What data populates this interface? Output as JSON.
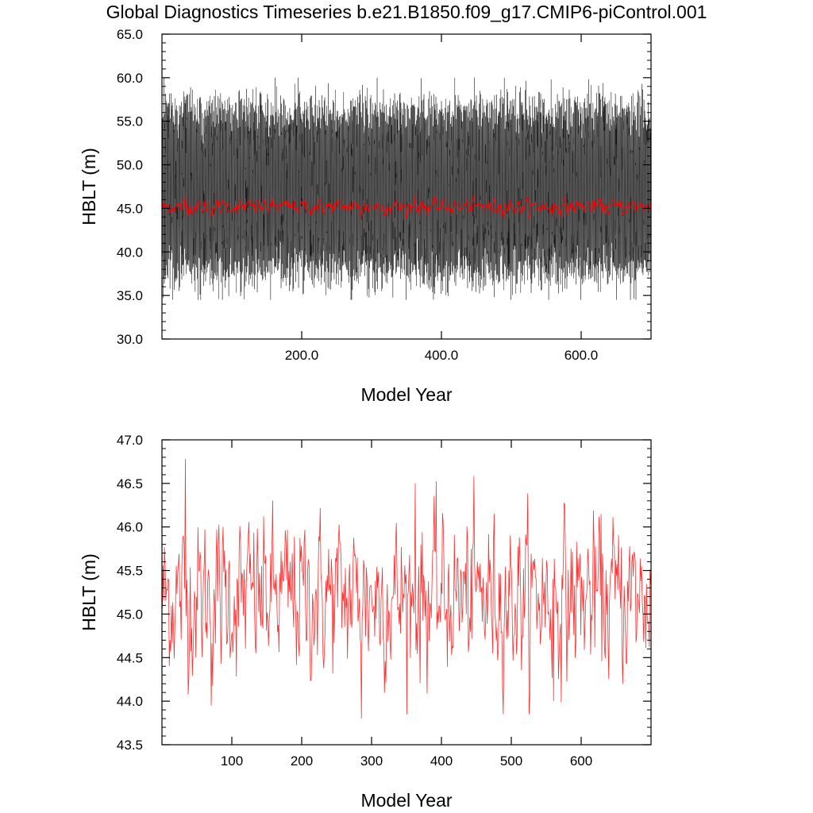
{
  "title": "Global Diagnostics Timeseries b.e21.B1850.f09_g17.CMIP6-piControl.001",
  "colors": {
    "monthly": "#000000",
    "annual": "#ff0000",
    "annual_lower": "#ff3030"
  },
  "chart_data": [
    {
      "type": "line",
      "xlabel": "Model Year",
      "ylabel": "HBLT (m)",
      "xlim": [
        0,
        700
      ],
      "ylim": [
        30.0,
        65.0
      ],
      "xticks": [
        200,
        400,
        600
      ],
      "xtick_labels": [
        "200.0",
        "400.0",
        "600.0"
      ],
      "yticks": [
        30,
        35,
        40,
        45,
        50,
        55,
        60,
        65
      ],
      "ytick_labels": [
        "30.0",
        "35.0",
        "40.0",
        "45.0",
        "50.0",
        "55.0",
        "60.0",
        "65.0"
      ],
      "series": [
        {
          "style": "monthly",
          "color": "#000000",
          "description_values": {
            "seasonal_min_range": [
              34.5,
              40.0
            ],
            "seasonal_max_range": [
              55.0,
              60.0
            ]
          }
        },
        {
          "style": "annual",
          "color": "#ff0000",
          "mean": 45.2,
          "range": [
            44.0,
            46.5
          ]
        }
      ]
    },
    {
      "type": "line",
      "xlabel": "Model Year",
      "ylabel": "HBLT (m)",
      "xlim": [
        0,
        700
      ],
      "ylim": [
        43.5,
        47.0
      ],
      "xticks": [
        100,
        200,
        300,
        400,
        500,
        600
      ],
      "xtick_labels": [
        "100",
        "200",
        "300",
        "400",
        "500",
        "600"
      ],
      "yticks": [
        43.5,
        44.0,
        44.5,
        45.0,
        45.5,
        46.0,
        46.5,
        47.0
      ],
      "ytick_labels": [
        "43.5",
        "44.0",
        "44.5",
        "45.0",
        "45.5",
        "46.0",
        "46.5",
        "47.0"
      ],
      "series": [
        {
          "style": "annual",
          "color": "#ff3030",
          "mean": 45.2,
          "extremes": [
            [
              33,
              46.78
            ],
            [
              70,
              43.95
            ],
            [
              285,
              43.8
            ],
            [
              362,
              46.5
            ],
            [
              560,
              44.0
            ]
          ]
        }
      ]
    }
  ]
}
